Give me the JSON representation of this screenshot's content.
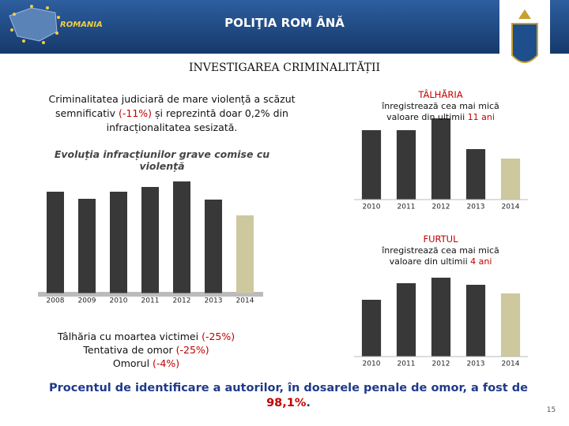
{
  "header": {
    "title": "POLIŢIA ROM ÂNĂ",
    "logo_text": "ROMANIA"
  },
  "heading": "INVESTIGAREA CRIMINALITĂȚII",
  "intro": [
    {
      "text": "Criminalitatea judiciară de mare violență a scăzut semnificativ "
    },
    {
      "text": "(-11%)",
      "color": "#c00000"
    },
    {
      "text": " și reprezintă doar 0,2% din infracționalitatea sesizată."
    }
  ],
  "chart_data": [
    {
      "type": "bar",
      "title": "Evoluția infracțiunilor grave comise cu violență",
      "categories": [
        "2008",
        "2009",
        "2010",
        "2011",
        "2012",
        "2013",
        "2014"
      ],
      "values": [
        129,
        120,
        129,
        135,
        142,
        119,
        99
      ],
      "colors": [
        "#383838",
        "#383838",
        "#383838",
        "#383838",
        "#383838",
        "#383838",
        "#cdc89e"
      ],
      "ylim": [
        0,
        150
      ]
    },
    {
      "type": "bar",
      "title": "TÂLHĂRIA",
      "subtitle": [
        {
          "text": "înregistrează cea mai mică valoare din ultimii "
        },
        {
          "text": "11 ani",
          "color": "#c00000"
        }
      ],
      "categories": [
        "2010",
        "2011",
        "2012",
        "2013",
        "2014"
      ],
      "values": [
        88,
        88,
        103,
        64,
        52
      ],
      "colors": [
        "#383838",
        "#383838",
        "#383838",
        "#383838",
        "#cdc89e"
      ],
      "ylim": [
        0,
        110
      ]
    },
    {
      "type": "bar",
      "title": "FURTUL",
      "subtitle": [
        {
          "text": "înregistrează cea mai mică valoare din ultimii "
        },
        {
          "text": "4 ani",
          "color": "#c00000"
        }
      ],
      "categories": [
        "2010",
        "2011",
        "2012",
        "2013",
        "2014"
      ],
      "values": [
        72,
        93,
        100,
        91,
        80
      ],
      "colors": [
        "#383838",
        "#383838",
        "#383838",
        "#383838",
        "#cdc89e"
      ],
      "ylim": [
        0,
        110
      ]
    }
  ],
  "details": [
    [
      {
        "text": "Tâlhăria cu moartea victimei "
      },
      {
        "text": "(-25%)",
        "color": "#c00000"
      }
    ],
    [
      {
        "text": "Tentativa de omor "
      },
      {
        "text": "(-25%)",
        "color": "#c00000"
      }
    ],
    [
      {
        "text": "Omorul "
      },
      {
        "text": "(-4%)",
        "color": "#c00000"
      }
    ]
  ],
  "conclusion": [
    {
      "text": "Procentul de identificare a autorilor, în dosarele penale de omor, a fost de "
    },
    {
      "text": "98,1%",
      "color": "#c00000"
    },
    {
      "text": "."
    }
  ],
  "page_number": "15"
}
